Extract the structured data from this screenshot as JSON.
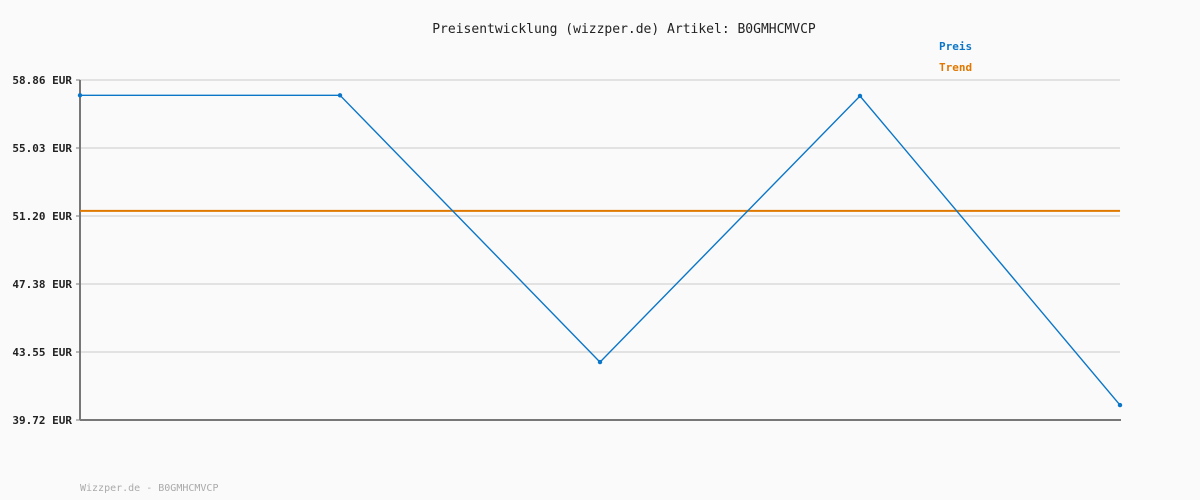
{
  "chart_data": {
    "type": "line",
    "title": "Preisentwicklung (wizzper.de) Artikel: B0GMHCMVCP",
    "y_ticks": [
      "58.86 EUR",
      "55.03 EUR",
      "51.20 EUR",
      "47.38 EUR",
      "43.55 EUR",
      "39.72 EUR"
    ],
    "ylim": [
      39.72,
      58.86
    ],
    "grid": true,
    "legend_position": "top-right",
    "series": [
      {
        "name": "Preis",
        "color": "#0b76c8",
        "values": [
          58.0,
          58.0,
          42.98,
          57.96,
          40.56
        ]
      },
      {
        "name": "Trend",
        "color": "#e07800",
        "values": [
          51.49,
          51.49
        ]
      }
    ]
  },
  "footer": "Wizzper.de - B0GMHCMVCP"
}
